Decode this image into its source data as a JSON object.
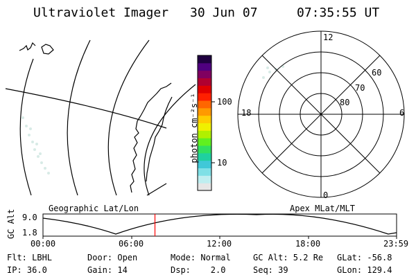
{
  "header": {
    "title": "Ultraviolet Imager",
    "date": "30 Jun 07",
    "time": "07:35:55 UT"
  },
  "colorbar": {
    "unit_label": "photon cm⁻²s⁻¹",
    "tick_100": "100",
    "tick_10": "10",
    "colors": [
      "#e6e6e6",
      "#bfeef0",
      "#7fe0e6",
      "#40c8d8",
      "#1fd0a0",
      "#30e060",
      "#60f020",
      "#b0f000",
      "#f0f000",
      "#ffcc00",
      "#ff9900",
      "#ff6600",
      "#ff2000",
      "#e00000",
      "#b00030",
      "#800060",
      "#500080",
      "#200040"
    ]
  },
  "polar": {
    "mlt_12": "12",
    "mlt_18": "18",
    "mlt_6": "6",
    "mlt_0": "0",
    "lat_60": "60",
    "lat_70": "70",
    "lat_80": "80"
  },
  "map_labels": {
    "geographic": "Geographic Lat/Lon",
    "apex": "Apex MLat/MLT"
  },
  "timeline": {
    "ylabel": "GC Alt",
    "ytick_high": "9.0",
    "ytick_low": "1.8",
    "xticks": [
      "00:00",
      "06:00",
      "12:00",
      "18:00",
      "23:59"
    ],
    "current_time_hours": 7.6,
    "marker_color": "#ff0000"
  },
  "status": {
    "flt": "Flt: LBHL",
    "door": "Door: Open",
    "mode": "Mode: Normal",
    "gc_alt": "GC Alt: 5.2 Re",
    "glat": "GLat: -56.8",
    "ip": "IP: 36.0",
    "gain": "Gain: 14",
    "dsp": "Dsp:    2.0",
    "seq": "Seq: 39",
    "glon": "GLon: 129.4"
  }
}
